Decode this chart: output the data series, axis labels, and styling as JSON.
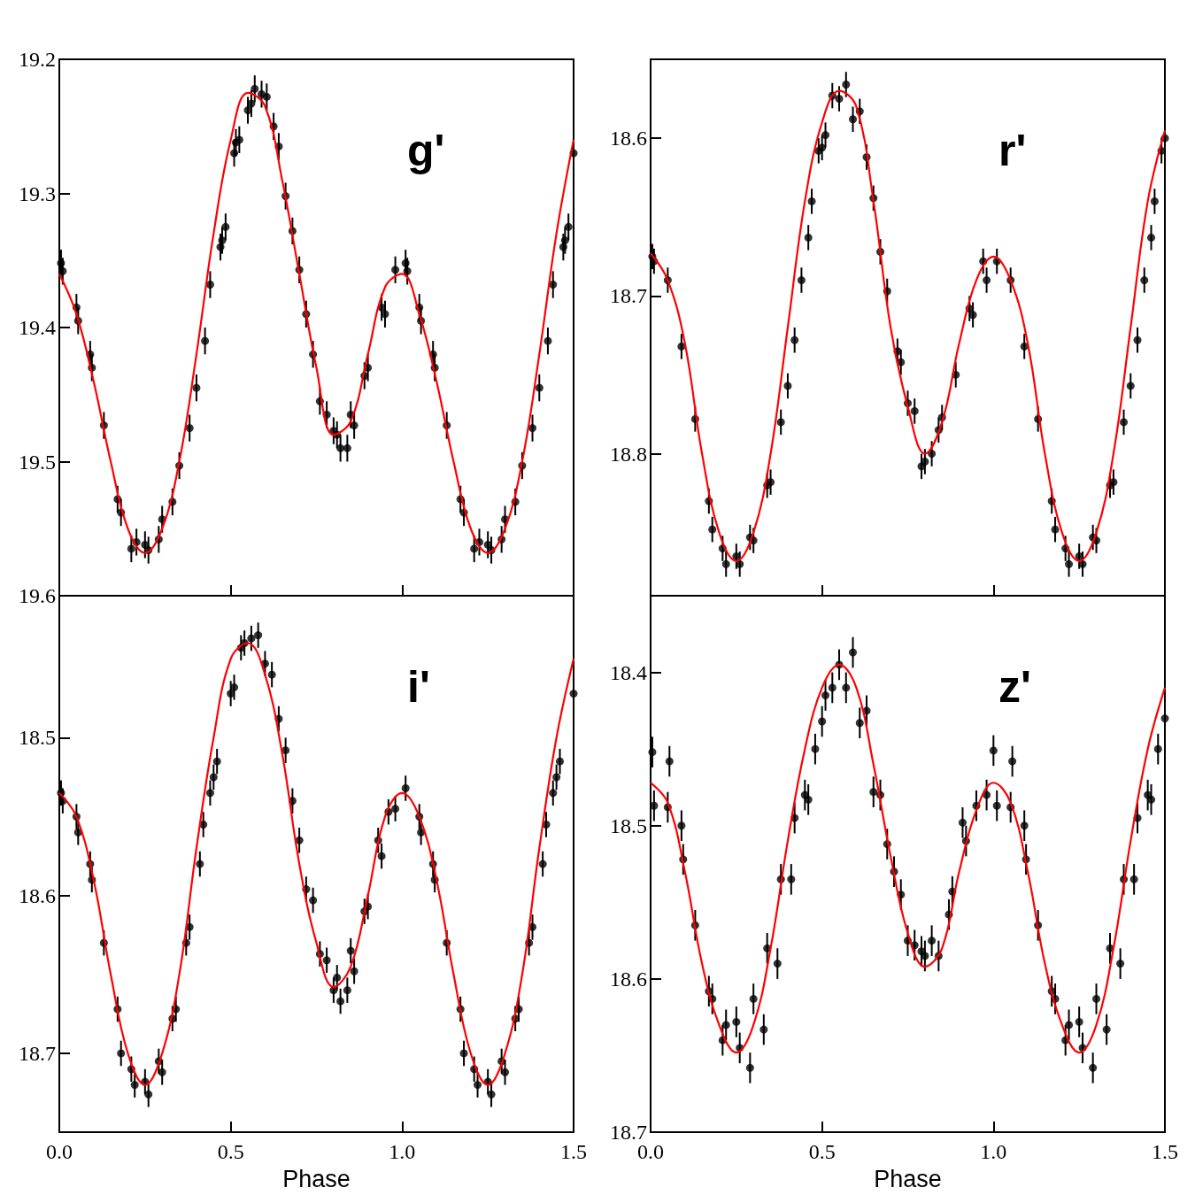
{
  "chart_data": [
    {
      "type": "scatter",
      "title": "g'",
      "xlim": [
        0,
        1.5
      ],
      "xticks": [
        {
          "value": 0,
          "label": null
        },
        {
          "value": 0.5,
          "label": null
        },
        {
          "value": 1,
          "label": null
        },
        {
          "value": 1.5,
          "label": null
        }
      ],
      "ylim": [
        19.6,
        19.2
      ],
      "yticks": [
        19.2,
        19.3,
        19.4,
        19.5,
        19.6
      ],
      "tick_labels": "y",
      "grid": false,
      "series": [
        {
          "type": "scatter",
          "color": "#000000",
          "marker": "circle",
          "x": [
            0.005,
            0.01,
            0.05,
            0.055,
            0.09,
            0.095,
            0.13,
            0.17,
            0.18,
            0.21,
            0.225,
            0.25,
            0.26,
            0.29,
            0.3,
            0.33,
            0.35,
            0.38,
            0.4,
            0.425,
            0.44,
            0.47,
            0.475,
            0.485,
            0.51,
            0.515,
            0.525,
            0.55,
            0.56,
            0.57,
            0.59,
            0.605,
            0.625,
            0.64,
            0.66,
            0.68,
            0.7,
            0.72,
            0.74,
            0.76,
            0.78,
            0.8,
            0.81,
            0.82,
            0.84,
            0.85,
            0.86,
            0.89,
            0.9,
            0.94,
            0.95,
            0.98,
            1.01,
            1.015,
            1.05,
            1.055,
            1.09,
            1.095,
            1.13,
            1.17,
            1.18,
            1.21,
            1.225,
            1.25,
            1.26,
            1.29,
            1.3,
            1.33,
            1.35,
            1.38,
            1.4,
            1.425,
            1.44,
            1.47,
            1.475,
            1.485,
            1.5
          ],
          "values": [
            19.352,
            19.358,
            19.385,
            19.395,
            19.42,
            19.43,
            19.473,
            19.528,
            19.538,
            19.565,
            19.56,
            19.562,
            19.566,
            19.558,
            19.543,
            19.53,
            19.503,
            19.475,
            19.445,
            19.41,
            19.368,
            19.34,
            19.335,
            19.325,
            19.27,
            19.262,
            19.26,
            19.238,
            19.233,
            19.222,
            19.226,
            19.228,
            19.25,
            19.265,
            19.302,
            19.328,
            19.357,
            19.39,
            19.42,
            19.455,
            19.465,
            19.477,
            19.48,
            19.49,
            19.49,
            19.465,
            19.473,
            19.436,
            19.43,
            19.385,
            19.39,
            19.357,
            19.352,
            19.358,
            19.385,
            19.395,
            19.42,
            19.43,
            19.473,
            19.528,
            19.538,
            19.565,
            19.56,
            19.562,
            19.566,
            19.558,
            19.543,
            19.53,
            19.503,
            19.475,
            19.445,
            19.41,
            19.368,
            19.34,
            19.335,
            19.325,
            19.27
          ],
          "errors": [
            0.01,
            0.01,
            0.01,
            0.01,
            0.01,
            0.01,
            0.01,
            0.01,
            0.01,
            0.01,
            0.01,
            0.01,
            0.01,
            0.01,
            0.01,
            0.01,
            0.01,
            0.01,
            0.01,
            0.01,
            0.01,
            0.01,
            0.01,
            0.01,
            0.01,
            0.01,
            0.01,
            0.01,
            0.01,
            0.01,
            0.01,
            0.01,
            0.01,
            0.01,
            0.01,
            0.01,
            0.01,
            0.01,
            0.01,
            0.01,
            0.01,
            0.01,
            0.01,
            0.01,
            0.01,
            0.01,
            0.01,
            0.01,
            0.01,
            0.01,
            0.01,
            0.01,
            0.01,
            0.01,
            0.01,
            0.01,
            0.01,
            0.01,
            0.01,
            0.01,
            0.01,
            0.01,
            0.01,
            0.01,
            0.01,
            0.01,
            0.01,
            0.01,
            0.01,
            0.01,
            0.01,
            0.01,
            0.01,
            0.01,
            0.01,
            0.01,
            0.01
          ]
        },
        {
          "type": "line",
          "color": "#ff0000",
          "x": [
            0,
            0.05,
            0.1,
            0.15,
            0.2,
            0.25,
            0.3,
            0.35,
            0.4,
            0.45,
            0.5,
            0.55,
            0.6,
            0.65,
            0.7,
            0.75,
            0.8,
            0.85,
            0.9,
            0.95,
            1.0,
            1.05,
            1.1,
            1.15,
            1.2,
            1.25,
            1.3,
            1.35,
            1.4,
            1.45,
            1.5
          ],
          "values": [
            19.36,
            19.39,
            19.44,
            19.5,
            19.55,
            19.568,
            19.55,
            19.5,
            19.42,
            19.33,
            19.26,
            19.225,
            19.235,
            19.29,
            19.36,
            19.43,
            19.48,
            19.47,
            19.42,
            19.37,
            19.36,
            19.39,
            19.44,
            19.5,
            19.55,
            19.568,
            19.55,
            19.5,
            19.42,
            19.33,
            19.26
          ]
        }
      ]
    },
    {
      "type": "scatter",
      "title": "r'",
      "xlim": [
        0,
        1.5
      ],
      "xticks": [
        {
          "value": 0,
          "label": null
        },
        {
          "value": 0.5,
          "label": null
        },
        {
          "value": 1,
          "label": null
        },
        {
          "value": 1.5,
          "label": null
        }
      ],
      "ylim": [
        18.89,
        18.55
      ],
      "yticks": [
        18.6,
        18.7,
        18.8
      ],
      "tick_labels": "y",
      "grid": false,
      "series": [
        {
          "type": "scatter",
          "color": "#000000",
          "marker": "circle",
          "x": [
            0.005,
            0.01,
            0.05,
            0.09,
            0.13,
            0.17,
            0.18,
            0.21,
            0.22,
            0.25,
            0.26,
            0.29,
            0.3,
            0.34,
            0.35,
            0.38,
            0.4,
            0.42,
            0.44,
            0.46,
            0.47,
            0.49,
            0.5,
            0.51,
            0.53,
            0.55,
            0.57,
            0.59,
            0.61,
            0.63,
            0.65,
            0.67,
            0.69,
            0.72,
            0.73,
            0.75,
            0.77,
            0.79,
            0.8,
            0.82,
            0.84,
            0.85,
            0.89,
            0.93,
            0.94,
            0.97,
            0.98,
            1.01,
            1.05,
            1.09,
            1.13,
            1.17,
            1.18,
            1.21,
            1.22,
            1.25,
            1.26,
            1.29,
            1.3,
            1.34,
            1.35,
            1.38,
            1.4,
            1.42,
            1.44,
            1.46,
            1.47,
            1.49,
            1.5
          ],
          "values": [
            18.675,
            18.678,
            18.69,
            18.732,
            18.778,
            18.83,
            18.848,
            18.86,
            18.87,
            18.865,
            18.87,
            18.853,
            18.855,
            18.82,
            18.818,
            18.78,
            18.757,
            18.728,
            18.69,
            18.663,
            18.64,
            18.608,
            18.606,
            18.598,
            18.573,
            18.575,
            18.566,
            18.588,
            18.583,
            18.612,
            18.638,
            18.672,
            18.697,
            18.735,
            18.742,
            18.768,
            18.773,
            18.808,
            18.805,
            18.8,
            18.785,
            18.777,
            18.75,
            18.708,
            18.712,
            18.678,
            18.69,
            18.678,
            18.69,
            18.732,
            18.778,
            18.83,
            18.848,
            18.86,
            18.87,
            18.865,
            18.87,
            18.853,
            18.855,
            18.82,
            18.818,
            18.78,
            18.757,
            18.728,
            18.69,
            18.663,
            18.64,
            18.608,
            18.6
          ],
          "errors": [
            0.008,
            0.008,
            0.008,
            0.008,
            0.008,
            0.008,
            0.008,
            0.008,
            0.008,
            0.008,
            0.008,
            0.008,
            0.008,
            0.008,
            0.008,
            0.008,
            0.008,
            0.008,
            0.008,
            0.008,
            0.008,
            0.008,
            0.008,
            0.008,
            0.008,
            0.008,
            0.008,
            0.008,
            0.008,
            0.008,
            0.008,
            0.008,
            0.008,
            0.008,
            0.008,
            0.008,
            0.008,
            0.008,
            0.008,
            0.008,
            0.008,
            0.008,
            0.008,
            0.008,
            0.008,
            0.008,
            0.008,
            0.008,
            0.008,
            0.008,
            0.008,
            0.008,
            0.008,
            0.008,
            0.008,
            0.008,
            0.008,
            0.008,
            0.008,
            0.008,
            0.008,
            0.008,
            0.008,
            0.008,
            0.008,
            0.008,
            0.008,
            0.008,
            0.008
          ]
        },
        {
          "type": "line",
          "color": "#ff0000",
          "x": [
            0,
            0.05,
            0.1,
            0.15,
            0.2,
            0.25,
            0.3,
            0.35,
            0.4,
            0.45,
            0.5,
            0.55,
            0.6,
            0.65,
            0.7,
            0.75,
            0.8,
            0.85,
            0.9,
            0.95,
            1.0,
            1.05,
            1.1,
            1.15,
            1.2,
            1.25,
            1.3,
            1.35,
            1.4,
            1.45,
            1.5
          ],
          "values": [
            18.673,
            18.69,
            18.73,
            18.8,
            18.85,
            18.868,
            18.85,
            18.8,
            18.72,
            18.64,
            18.59,
            18.57,
            18.58,
            18.64,
            18.72,
            18.77,
            18.8,
            18.78,
            18.73,
            18.69,
            18.675,
            18.69,
            18.73,
            18.8,
            18.85,
            18.868,
            18.85,
            18.8,
            18.72,
            18.64,
            18.595
          ]
        }
      ]
    },
    {
      "type": "scatter",
      "title": "i'",
      "xlabel": "Phase",
      "xlim": [
        0,
        1.5
      ],
      "xticks": [
        {
          "value": 0,
          "label": "0.0"
        },
        {
          "value": 0.5,
          "label": "0.5"
        },
        {
          "value": 1,
          "label": "1.0"
        },
        {
          "value": 1.5,
          "label": "1.5"
        }
      ],
      "ylim": [
        18.75,
        18.41
      ],
      "yticks": [
        18.5,
        18.6,
        18.7
      ],
      "grid": false,
      "series": [
        {
          "type": "scatter",
          "color": "#000000",
          "marker": "circle",
          "x": [
            0.005,
            0.01,
            0.05,
            0.055,
            0.09,
            0.095,
            0.13,
            0.17,
            0.18,
            0.21,
            0.22,
            0.25,
            0.26,
            0.29,
            0.3,
            0.33,
            0.34,
            0.37,
            0.38,
            0.41,
            0.42,
            0.44,
            0.45,
            0.46,
            0.5,
            0.51,
            0.53,
            0.54,
            0.56,
            0.58,
            0.6,
            0.62,
            0.64,
            0.66,
            0.68,
            0.7,
            0.72,
            0.74,
            0.76,
            0.78,
            0.8,
            0.81,
            0.82,
            0.84,
            0.85,
            0.86,
            0.89,
            0.9,
            0.93,
            0.94,
            0.96,
            0.98,
            1.01,
            1.05,
            1.055,
            1.09,
            1.095,
            1.13,
            1.17,
            1.18,
            1.21,
            1.22,
            1.25,
            1.26,
            1.29,
            1.3,
            1.33,
            1.34,
            1.37,
            1.38,
            1.41,
            1.42,
            1.44,
            1.45,
            1.46,
            1.5
          ],
          "values": [
            18.535,
            18.54,
            18.55,
            18.56,
            18.58,
            18.59,
            18.63,
            18.672,
            18.7,
            18.71,
            18.72,
            18.718,
            18.726,
            18.705,
            18.712,
            18.678,
            18.672,
            18.63,
            18.62,
            18.58,
            18.555,
            18.535,
            18.525,
            18.515,
            18.472,
            18.468,
            18.443,
            18.44,
            18.437,
            18.435,
            18.453,
            18.46,
            18.488,
            18.508,
            18.54,
            18.565,
            18.596,
            18.603,
            18.637,
            18.641,
            18.66,
            18.652,
            18.667,
            18.66,
            18.635,
            18.648,
            18.61,
            18.607,
            18.565,
            18.575,
            18.547,
            18.545,
            18.532,
            18.55,
            18.56,
            18.58,
            18.59,
            18.63,
            18.672,
            18.7,
            18.71,
            18.72,
            18.718,
            18.726,
            18.705,
            18.712,
            18.678,
            18.672,
            18.63,
            18.62,
            18.58,
            18.555,
            18.535,
            18.525,
            18.515,
            18.472
          ],
          "errors": [
            0.008,
            0.008,
            0.008,
            0.008,
            0.008,
            0.008,
            0.008,
            0.008,
            0.008,
            0.008,
            0.008,
            0.008,
            0.008,
            0.008,
            0.008,
            0.008,
            0.008,
            0.008,
            0.008,
            0.008,
            0.008,
            0.008,
            0.008,
            0.008,
            0.008,
            0.008,
            0.008,
            0.008,
            0.008,
            0.008,
            0.008,
            0.008,
            0.008,
            0.008,
            0.008,
            0.008,
            0.008,
            0.008,
            0.008,
            0.008,
            0.008,
            0.008,
            0.008,
            0.008,
            0.008,
            0.008,
            0.008,
            0.008,
            0.008,
            0.008,
            0.008,
            0.008,
            0.008,
            0.008,
            0.008,
            0.008,
            0.008,
            0.008,
            0.008,
            0.008,
            0.008,
            0.008,
            0.008,
            0.008,
            0.008,
            0.008,
            0.008,
            0.008,
            0.008,
            0.008,
            0.008,
            0.008,
            0.008,
            0.008,
            0.008,
            0.008
          ]
        },
        {
          "type": "line",
          "color": "#ff0000",
          "x": [
            0,
            0.05,
            0.1,
            0.15,
            0.2,
            0.25,
            0.3,
            0.35,
            0.4,
            0.45,
            0.5,
            0.55,
            0.6,
            0.65,
            0.7,
            0.75,
            0.8,
            0.85,
            0.9,
            0.95,
            1.0,
            1.05,
            1.1,
            1.15,
            1.2,
            1.25,
            1.3,
            1.35,
            1.4,
            1.45,
            1.5
          ],
          "values": [
            18.535,
            18.55,
            18.59,
            18.65,
            18.7,
            18.72,
            18.7,
            18.65,
            18.57,
            18.5,
            18.45,
            18.44,
            18.46,
            18.51,
            18.58,
            18.63,
            18.658,
            18.645,
            18.6,
            18.55,
            18.535,
            18.55,
            18.59,
            18.65,
            18.7,
            18.72,
            18.7,
            18.65,
            18.57,
            18.5,
            18.45
          ]
        }
      ]
    },
    {
      "type": "scatter",
      "title": "z'",
      "xlabel": "Phase",
      "xlim": [
        0,
        1.5
      ],
      "xticks": [
        {
          "value": 0,
          "label": "0.0"
        },
        {
          "value": 0.5,
          "label": "0.5"
        },
        {
          "value": 1,
          "label": "1.0"
        },
        {
          "value": 1.5,
          "label": "1.5"
        }
      ],
      "ylim": [
        18.7,
        18.35
      ],
      "yticks": [
        18.4,
        18.5,
        18.6,
        18.7
      ],
      "grid": false,
      "series": [
        {
          "type": "scatter",
          "color": "#000000",
          "marker": "circle",
          "x": [
            0.005,
            0.01,
            0.05,
            0.055,
            0.09,
            0.095,
            0.13,
            0.17,
            0.18,
            0.21,
            0.22,
            0.25,
            0.26,
            0.29,
            0.3,
            0.33,
            0.34,
            0.37,
            0.38,
            0.41,
            0.42,
            0.45,
            0.46,
            0.48,
            0.5,
            0.51,
            0.53,
            0.55,
            0.57,
            0.59,
            0.61,
            0.63,
            0.65,
            0.67,
            0.69,
            0.71,
            0.73,
            0.75,
            0.77,
            0.79,
            0.8,
            0.82,
            0.84,
            0.87,
            0.88,
            0.91,
            0.92,
            0.95,
            0.98,
            1.0,
            1.01,
            1.05,
            1.055,
            1.09,
            1.095,
            1.13,
            1.17,
            1.18,
            1.21,
            1.22,
            1.25,
            1.26,
            1.29,
            1.3,
            1.33,
            1.34,
            1.37,
            1.38,
            1.41,
            1.42,
            1.45,
            1.46,
            1.48,
            1.5
          ],
          "values": [
            18.452,
            18.487,
            18.488,
            18.458,
            18.5,
            18.522,
            18.565,
            18.608,
            18.613,
            18.64,
            18.63,
            18.628,
            18.645,
            18.658,
            18.613,
            18.633,
            18.58,
            18.59,
            18.535,
            18.535,
            18.495,
            18.48,
            18.483,
            18.45,
            18.432,
            18.415,
            18.41,
            18.395,
            18.41,
            18.387,
            18.433,
            18.425,
            18.478,
            18.48,
            18.512,
            18.53,
            18.545,
            18.575,
            18.578,
            18.582,
            18.585,
            18.575,
            18.585,
            18.558,
            18.543,
            18.498,
            18.51,
            18.487,
            18.48,
            18.451,
            18.487,
            18.488,
            18.458,
            18.5,
            18.522,
            18.565,
            18.608,
            18.613,
            18.64,
            18.63,
            18.628,
            18.645,
            18.658,
            18.613,
            18.633,
            18.58,
            18.59,
            18.535,
            18.535,
            18.495,
            18.48,
            18.483,
            18.45,
            18.43
          ],
          "errors": [
            0.01,
            0.01,
            0.01,
            0.01,
            0.01,
            0.01,
            0.01,
            0.01,
            0.01,
            0.01,
            0.01,
            0.01,
            0.01,
            0.01,
            0.01,
            0.01,
            0.01,
            0.01,
            0.01,
            0.01,
            0.01,
            0.01,
            0.01,
            0.01,
            0.01,
            0.01,
            0.01,
            0.01,
            0.01,
            0.01,
            0.01,
            0.01,
            0.01,
            0.01,
            0.01,
            0.01,
            0.01,
            0.01,
            0.01,
            0.01,
            0.01,
            0.01,
            0.01,
            0.01,
            0.01,
            0.01,
            0.01,
            0.01,
            0.01,
            0.01,
            0.01,
            0.01,
            0.01,
            0.01,
            0.01,
            0.01,
            0.01,
            0.01,
            0.01,
            0.01,
            0.01,
            0.01,
            0.01,
            0.01,
            0.01,
            0.01,
            0.01,
            0.01,
            0.01,
            0.01,
            0.01,
            0.01,
            0.01,
            0.01
          ]
        },
        {
          "type": "line",
          "color": "#ff0000",
          "x": [
            0,
            0.05,
            0.1,
            0.15,
            0.2,
            0.25,
            0.3,
            0.35,
            0.4,
            0.45,
            0.5,
            0.55,
            0.6,
            0.65,
            0.7,
            0.75,
            0.8,
            0.85,
            0.9,
            0.95,
            1.0,
            1.05,
            1.1,
            1.15,
            1.2,
            1.25,
            1.3,
            1.35,
            1.4,
            1.45,
            1.5
          ],
          "values": [
            18.472,
            18.485,
            18.53,
            18.59,
            18.63,
            18.648,
            18.63,
            18.58,
            18.51,
            18.45,
            18.41,
            18.395,
            18.41,
            18.46,
            18.52,
            18.57,
            18.592,
            18.58,
            18.53,
            18.49,
            18.472,
            18.485,
            18.53,
            18.59,
            18.63,
            18.648,
            18.63,
            18.58,
            18.51,
            18.45,
            18.41
          ]
        }
      ]
    }
  ]
}
